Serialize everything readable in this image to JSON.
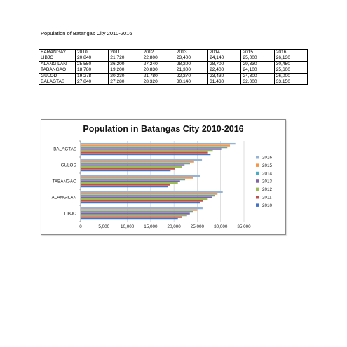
{
  "document": {
    "title": "Population of Batangas City 2010-2016"
  },
  "table": {
    "headers": [
      "BARANGAY",
      "2010",
      "2011",
      "2012",
      "2013",
      "2014",
      "2015",
      "2016"
    ],
    "rows": [
      [
        "LIBJO",
        "20,840",
        "21,720",
        "22,800",
        "23,400",
        "24,140",
        "25,000",
        "26,130"
      ],
      [
        "ALANGILAN",
        "25,550",
        "26,200",
        "27,240",
        "28,200",
        "28,700",
        "29,330",
        "30,450"
      ],
      [
        "TABANGAO",
        "18,780",
        "19,200",
        "20,830",
        "21,300",
        "22,400",
        "24,100",
        "25,600"
      ],
      [
        "GULOD",
        "19,278",
        "20,230",
        "21,780",
        "22,270",
        "23,430",
        "24,300",
        "26,000"
      ],
      [
        "BALAGTAS",
        "27,840",
        "27,280",
        "28,320",
        "30,140",
        "31,430",
        "32,000",
        "33,150"
      ]
    ]
  },
  "chart_data": {
    "type": "bar",
    "orientation": "horizontal",
    "title": "Population in Batangas City 2010-2016",
    "categories": [
      "LIBJO",
      "ALANGILAN",
      "TABANGAO",
      "GULOD",
      "BALAGTAS"
    ],
    "series": [
      {
        "name": "2010",
        "color": "#4472C4",
        "values": [
          20840,
          25550,
          18780,
          19278,
          27840
        ]
      },
      {
        "name": "2011",
        "color": "#C0504D",
        "values": [
          21720,
          26200,
          19200,
          20230,
          27280
        ]
      },
      {
        "name": "2012",
        "color": "#9BBB59",
        "values": [
          22800,
          27240,
          20830,
          21780,
          28320
        ]
      },
      {
        "name": "2013",
        "color": "#8064A2",
        "values": [
          23400,
          28200,
          21300,
          22270,
          30140
        ]
      },
      {
        "name": "2014",
        "color": "#4BACC6",
        "values": [
          24140,
          28700,
          22400,
          23430,
          31430
        ]
      },
      {
        "name": "2015",
        "color": "#F79646",
        "values": [
          25000,
          29330,
          24100,
          24300,
          32000
        ]
      },
      {
        "name": "2016",
        "color": "#95B3D7",
        "values": [
          26130,
          30450,
          25600,
          26000,
          33150
        ]
      }
    ],
    "xlim": [
      0,
      35000
    ],
    "xticks": [
      "0",
      "5,000",
      "10,000",
      "15,000",
      "20,000",
      "25,000",
      "30,000",
      "35,000"
    ],
    "legend_order": [
      "2016",
      "2015",
      "2014",
      "2013",
      "2012",
      "2011",
      "2010"
    ],
    "legend_position": "right",
    "grid": true
  }
}
